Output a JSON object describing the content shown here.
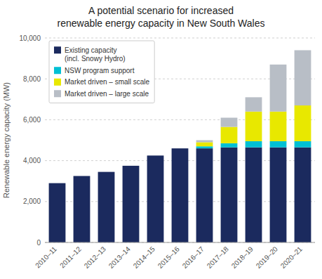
{
  "chart_data": {
    "type": "bar",
    "stacked": true,
    "title": "A potential scenario for increased\nrenewable energy capacity in New South Wales",
    "y_label": "Renewable energy capacity (MW)",
    "categories": [
      "2010–11",
      "2011–12",
      "2012–13",
      "2013–14",
      "2014–15",
      "2015–16",
      "2016–17",
      "2017–18",
      "2018–19",
      "2019–20",
      "2020–21"
    ],
    "series": [
      {
        "name": "Existing capacity\n(incl. Snowy Hydro)",
        "color": "#1b2a5e",
        "values": [
          2900,
          3250,
          3450,
          3750,
          4250,
          4600,
          4600,
          4650,
          4650,
          4650,
          4650
        ]
      },
      {
        "name": "NSW program support",
        "color": "#00c0d4",
        "values": [
          0,
          0,
          0,
          0,
          0,
          0,
          100,
          200,
          300,
          300,
          300
        ]
      },
      {
        "name": "Market driven – small scale",
        "color": "#e8e800",
        "values": [
          0,
          0,
          0,
          0,
          0,
          0,
          200,
          800,
          1450,
          1450,
          1750
        ]
      },
      {
        "name": "Market driven – large scale",
        "color": "#b8bec6",
        "values": [
          0,
          0,
          0,
          0,
          0,
          0,
          100,
          450,
          700,
          2300,
          2700
        ]
      }
    ],
    "ylim": [
      0,
      10000
    ],
    "yticks": [
      0,
      {
        "value": 2000,
        "label": "2,000"
      },
      {
        "value": 4000,
        "label": "4,000"
      },
      {
        "value": 6000,
        "label": "6,000"
      },
      {
        "value": 8000,
        "label": "8,000"
      },
      {
        "value": 10000,
        "label": "10,000"
      }
    ],
    "grid": true,
    "legend": "upper left"
  }
}
